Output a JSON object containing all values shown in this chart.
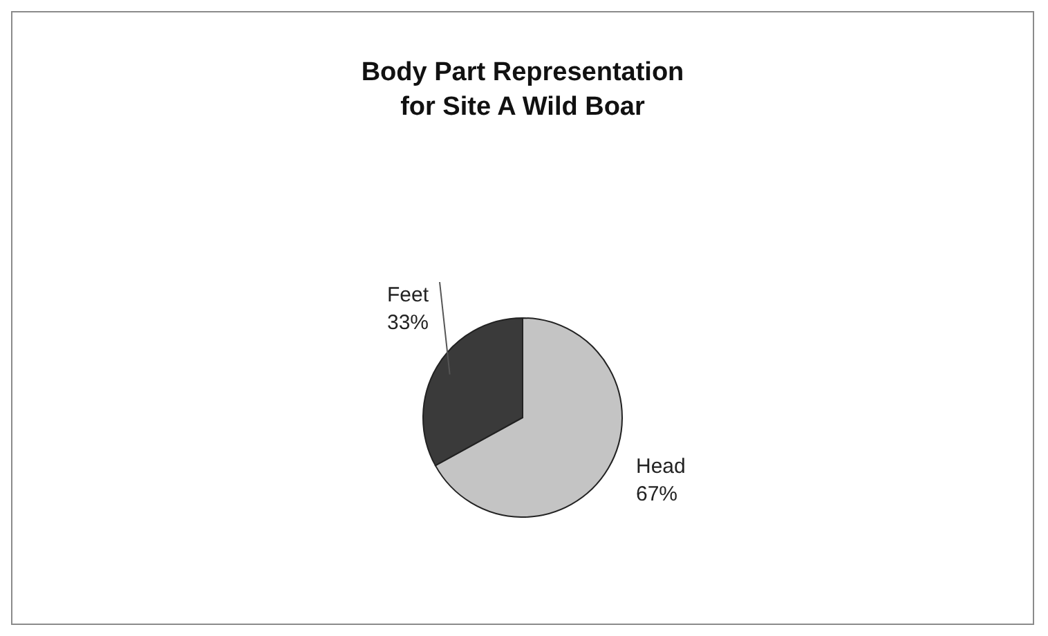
{
  "chart_data": {
    "type": "pie",
    "title": "Body Part Representation\nfor Site A Wild Boar",
    "categories": [
      "Head",
      "Feet"
    ],
    "values": [
      67,
      33
    ],
    "value_labels": [
      "67%",
      "33%"
    ],
    "colors": [
      "#c4c4c4",
      "#3a3a3a"
    ],
    "data_labels": true
  }
}
